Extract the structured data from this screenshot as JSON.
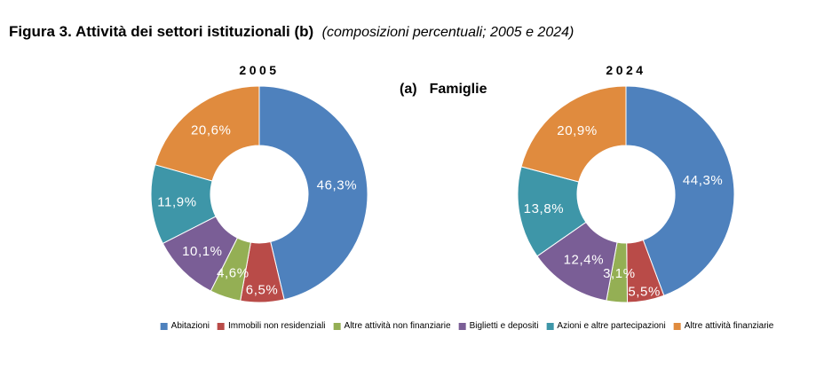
{
  "figure": {
    "title_main": "Figura 3. Attività dei settori istituzionali (b)",
    "title_note": "(composizioni percentuali; 2005 e 2024)",
    "panel_prefix": "(a)",
    "panel_name": "Famiglie"
  },
  "chart_data": {
    "type": "pie",
    "subtype": "donut",
    "title": "Figura 3. Attività dei settori istituzionali (b)",
    "subtitle": "composizioni percentuali; 2005 e 2024",
    "panel": "(a) Famiglie",
    "legend_position": "bottom",
    "start_angle_deg": 0,
    "direction": "clockwise",
    "categories": [
      "Abitazioni",
      "Immobili non residenziali",
      "Altre attività non finanziarie",
      "Biglietti e depositi",
      "Azioni e altre partecipazioni",
      "Altre attività finanziarie"
    ],
    "colors": [
      "#4E81BD",
      "#B94B48",
      "#94AF54",
      "#7A5E96",
      "#3E96A8",
      "#E08B3E"
    ],
    "series": [
      {
        "name": "2005",
        "values": [
          46.3,
          6.5,
          4.6,
          10.1,
          11.9,
          20.6
        ],
        "labels": [
          "46,3%",
          "6,5%",
          "4,6%",
          "10,1%",
          "11,9%",
          "20,6%"
        ],
        "label_radius": [
          88,
          108,
          94,
          91,
          93,
          90
        ]
      },
      {
        "name": "2024",
        "values": [
          44.3,
          5.5,
          3.1,
          12.4,
          13.8,
          20.9
        ],
        "labels": [
          "44,3%",
          "5,5%",
          "3,1%",
          "12,4%",
          "13,8%",
          "20,9%"
        ],
        "label_radius": [
          88,
          112,
          90,
          88,
          94,
          90
        ]
      }
    ]
  }
}
